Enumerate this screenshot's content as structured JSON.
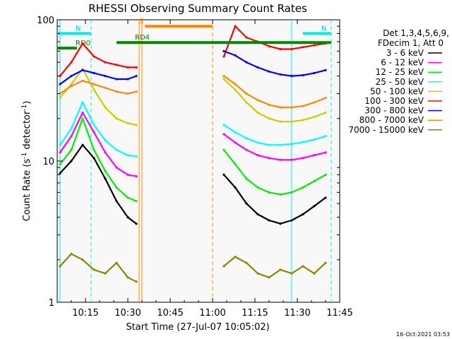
{
  "chart_data": {
    "type": "line",
    "title": "RHESSI Observing Summary Count Rates",
    "xlabel": "Start Time (27-Jul-07 10:05:02)",
    "ylabel_prefix": "Count Rate (s",
    "ylabel_sup": "-1",
    "ylabel_mid": " detector",
    "ylabel_end": ")",
    "y_scale": "log",
    "ylim": [
      1,
      100
    ],
    "xlim": [
      "10:05",
      "11:45"
    ],
    "x_ticks": [
      "10:15",
      "10:30",
      "10:45",
      "11:00",
      "11:15",
      "11:30",
      "11:45"
    ],
    "y_ticks": [
      "1",
      "10",
      "100"
    ],
    "timestamp": "16-Oct-2021 03:53",
    "legend_header": [
      "Det 1,3,4,5,6,9,",
      "FDecim 1, Att 0"
    ],
    "legend_placement": "right",
    "series": [
      {
        "name": "3 - 6 keV",
        "color": "#000000",
        "points": [
          [
            "10:06",
            8.2
          ],
          [
            "10:10",
            10.0
          ],
          [
            "10:14",
            13.0
          ],
          [
            "10:18",
            10.5
          ],
          [
            "10:22",
            7.5
          ],
          [
            "10:26",
            5.2
          ],
          [
            "10:30",
            4.0
          ],
          [
            "10:33",
            3.6
          ],
          [
            "11:04",
            8.0
          ],
          [
            "11:08",
            6.5
          ],
          [
            "11:12",
            5.0
          ],
          [
            "11:16",
            4.2
          ],
          [
            "11:20",
            3.8
          ],
          [
            "11:24",
            3.6
          ],
          [
            "11:28",
            3.8
          ],
          [
            "11:32",
            4.2
          ],
          [
            "11:36",
            4.8
          ],
          [
            "11:40",
            5.5
          ]
        ]
      },
      {
        "name": "6 - 12 keV",
        "color": "#ff00ff",
        "points": [
          [
            "10:06",
            11.5
          ],
          [
            "10:10",
            15.0
          ],
          [
            "10:14",
            22.0
          ],
          [
            "10:18",
            16.0
          ],
          [
            "10:22",
            11.5
          ],
          [
            "10:26",
            9.0
          ],
          [
            "10:30",
            8.0
          ],
          [
            "10:33",
            7.8
          ],
          [
            "11:04",
            15.5
          ],
          [
            "11:08",
            13.5
          ],
          [
            "11:12",
            12.0
          ],
          [
            "11:16",
            11.0
          ],
          [
            "11:20",
            10.5
          ],
          [
            "11:24",
            10.2
          ],
          [
            "11:28",
            10.2
          ],
          [
            "11:32",
            10.5
          ],
          [
            "11:36",
            11.0
          ],
          [
            "11:40",
            11.5
          ]
        ]
      },
      {
        "name": "12 - 25 keV",
        "color": "#00ee00",
        "points": [
          [
            "10:06",
            9.5
          ],
          [
            "10:10",
            12.0
          ],
          [
            "10:14",
            20.0
          ],
          [
            "10:18",
            12.0
          ],
          [
            "10:22",
            8.5
          ],
          [
            "10:26",
            6.5
          ],
          [
            "10:30",
            5.5
          ],
          [
            "10:33",
            5.2
          ],
          [
            "11:04",
            12.0
          ],
          [
            "11:08",
            9.5
          ],
          [
            "11:12",
            7.5
          ],
          [
            "11:16",
            6.5
          ],
          [
            "11:20",
            6.0
          ],
          [
            "11:24",
            5.8
          ],
          [
            "11:28",
            6.0
          ],
          [
            "11:32",
            6.5
          ],
          [
            "11:36",
            7.2
          ],
          [
            "11:40",
            8.0
          ]
        ]
      },
      {
        "name": "25 - 50 keV",
        "color": "#00ffff",
        "points": [
          [
            "10:06",
            13.0
          ],
          [
            "10:10",
            17.0
          ],
          [
            "10:14",
            26.0
          ],
          [
            "10:18",
            18.0
          ],
          [
            "10:22",
            14.0
          ],
          [
            "10:26",
            12.0
          ],
          [
            "10:30",
            11.0
          ],
          [
            "10:33",
            10.8
          ],
          [
            "11:04",
            18.0
          ],
          [
            "11:08",
            16.0
          ],
          [
            "11:12",
            14.5
          ],
          [
            "11:16",
            13.5
          ],
          [
            "11:20",
            13.0
          ],
          [
            "11:24",
            13.0
          ],
          [
            "11:28",
            13.2
          ],
          [
            "11:32",
            13.6
          ],
          [
            "11:36",
            14.2
          ],
          [
            "11:40",
            15.0
          ]
        ]
      },
      {
        "name": "50 - 100 keV",
        "color": "#cccc00",
        "points": [
          [
            "10:06",
            28.0
          ],
          [
            "10:10",
            35.0
          ],
          [
            "10:14",
            45.0
          ],
          [
            "10:18",
            32.0
          ],
          [
            "10:22",
            24.0
          ],
          [
            "10:26",
            20.0
          ],
          [
            "10:30",
            18.5
          ],
          [
            "10:33",
            18.0
          ],
          [
            "11:04",
            38.0
          ],
          [
            "11:08",
            32.0
          ],
          [
            "11:12",
            26.0
          ],
          [
            "11:16",
            22.0
          ],
          [
            "11:20",
            20.0
          ],
          [
            "11:24",
            19.0
          ],
          [
            "11:28",
            19.0
          ],
          [
            "11:32",
            19.5
          ],
          [
            "11:36",
            20.5
          ],
          [
            "11:40",
            22.0
          ]
        ]
      },
      {
        "name": "100 - 300 keV",
        "color": "#ff0000",
        "points": [
          [
            "10:06",
            40.0
          ],
          [
            "10:10",
            50.0
          ],
          [
            "10:14",
            68.0
          ],
          [
            "10:18",
            55.0
          ],
          [
            "10:22",
            50.0
          ],
          [
            "10:26",
            48.0
          ],
          [
            "10:30",
            46.0
          ],
          [
            "10:33",
            46.0
          ],
          [
            "11:04",
            55.0
          ],
          [
            "11:08",
            90.0
          ],
          [
            "11:12",
            75.0
          ],
          [
            "11:16",
            70.0
          ],
          [
            "11:20",
            65.0
          ],
          [
            "11:24",
            62.0
          ],
          [
            "11:28",
            62.0
          ],
          [
            "11:32",
            64.0
          ],
          [
            "11:36",
            66.0
          ],
          [
            "11:40",
            68.0
          ]
        ]
      },
      {
        "name": "300 - 800 keV",
        "color": "#0000ff",
        "points": [
          [
            "10:06",
            35.0
          ],
          [
            "10:10",
            40.0
          ],
          [
            "10:14",
            44.0
          ],
          [
            "10:18",
            42.0
          ],
          [
            "10:22",
            40.0
          ],
          [
            "10:26",
            38.0
          ],
          [
            "10:30",
            38.0
          ],
          [
            "10:33",
            40.0
          ],
          [
            "11:04",
            60.0
          ],
          [
            "11:08",
            56.0
          ],
          [
            "11:12",
            50.0
          ],
          [
            "11:16",
            46.0
          ],
          [
            "11:20",
            43.0
          ],
          [
            "11:24",
            41.0
          ],
          [
            "11:28",
            40.0
          ],
          [
            "11:32",
            40.5
          ],
          [
            "11:36",
            42.0
          ],
          [
            "11:40",
            44.0
          ]
        ]
      },
      {
        "name": "800 - 7000 keV",
        "color": "#ff8800",
        "points": [
          [
            "10:06",
            30.0
          ],
          [
            "10:10",
            34.0
          ],
          [
            "10:14",
            37.0
          ],
          [
            "10:18",
            35.0
          ],
          [
            "10:22",
            33.0
          ],
          [
            "10:26",
            31.0
          ],
          [
            "10:30",
            30.0
          ],
          [
            "10:33",
            31.0
          ],
          [
            "11:04",
            40.0
          ],
          [
            "11:08",
            35.0
          ],
          [
            "11:12",
            30.0
          ],
          [
            "11:16",
            27.0
          ],
          [
            "11:20",
            25.0
          ],
          [
            "11:24",
            24.0
          ],
          [
            "11:28",
            24.0
          ],
          [
            "11:32",
            24.5
          ],
          [
            "11:36",
            26.0
          ],
          [
            "11:40",
            28.0
          ]
        ]
      },
      {
        "name": "7000 - 15000 keV",
        "color": "#888800",
        "points": [
          [
            "10:06",
            1.8
          ],
          [
            "10:10",
            2.2
          ],
          [
            "10:14",
            2.0
          ],
          [
            "10:18",
            1.7
          ],
          [
            "10:22",
            1.6
          ],
          [
            "10:26",
            1.9
          ],
          [
            "10:30",
            1.5
          ],
          [
            "10:33",
            1.4
          ],
          [
            "11:04",
            1.8
          ],
          [
            "11:08",
            2.1
          ],
          [
            "11:12",
            1.9
          ],
          [
            "11:16",
            1.6
          ],
          [
            "11:20",
            1.5
          ],
          [
            "11:24",
            1.7
          ],
          [
            "11:28",
            1.6
          ],
          [
            "11:32",
            1.8
          ],
          [
            "11:36",
            1.6
          ],
          [
            "11:40",
            1.9
          ]
        ]
      }
    ],
    "state_bars": [
      {
        "label": "N",
        "color": "#00eeee",
        "label_color": "#00cccc",
        "from": "10:05",
        "to": "10:17",
        "value": 80
      },
      {
        "label": "N",
        "color": "#00eeee",
        "label_color": "#00cccc",
        "from": "11:32",
        "to": "11:42",
        "value": 80
      },
      {
        "label": "RD0",
        "color": "#008800",
        "label_color": "#008800",
        "from": "10:05",
        "to": "10:12",
        "value": 63
      },
      {
        "label": "RD4",
        "color": "#008800",
        "label_color": "#008800",
        "from": "10:26",
        "to": "11:42",
        "value": 69
      },
      {
        "label": "S",
        "color": "#ff8800",
        "label_color": "#ff8800",
        "from": "10:36",
        "to": "11:00",
        "value": 90
      }
    ],
    "markers": [
      {
        "time": "10:06",
        "color": "#00eeee",
        "style": "solid"
      },
      {
        "time": "10:17",
        "color": "#00eeee",
        "style": "dashed"
      },
      {
        "time": "11:28",
        "color": "#00eeee",
        "style": "solid"
      },
      {
        "time": "11:42",
        "color": "#00eeee",
        "style": "dashed"
      },
      {
        "time": "10:34",
        "color": "#ff8800",
        "style": "solid"
      },
      {
        "time": "10:35",
        "color": "#ff8800",
        "style": "solid"
      },
      {
        "time": "11:00",
        "color": "#ff8800",
        "style": "dashed"
      }
    ]
  }
}
